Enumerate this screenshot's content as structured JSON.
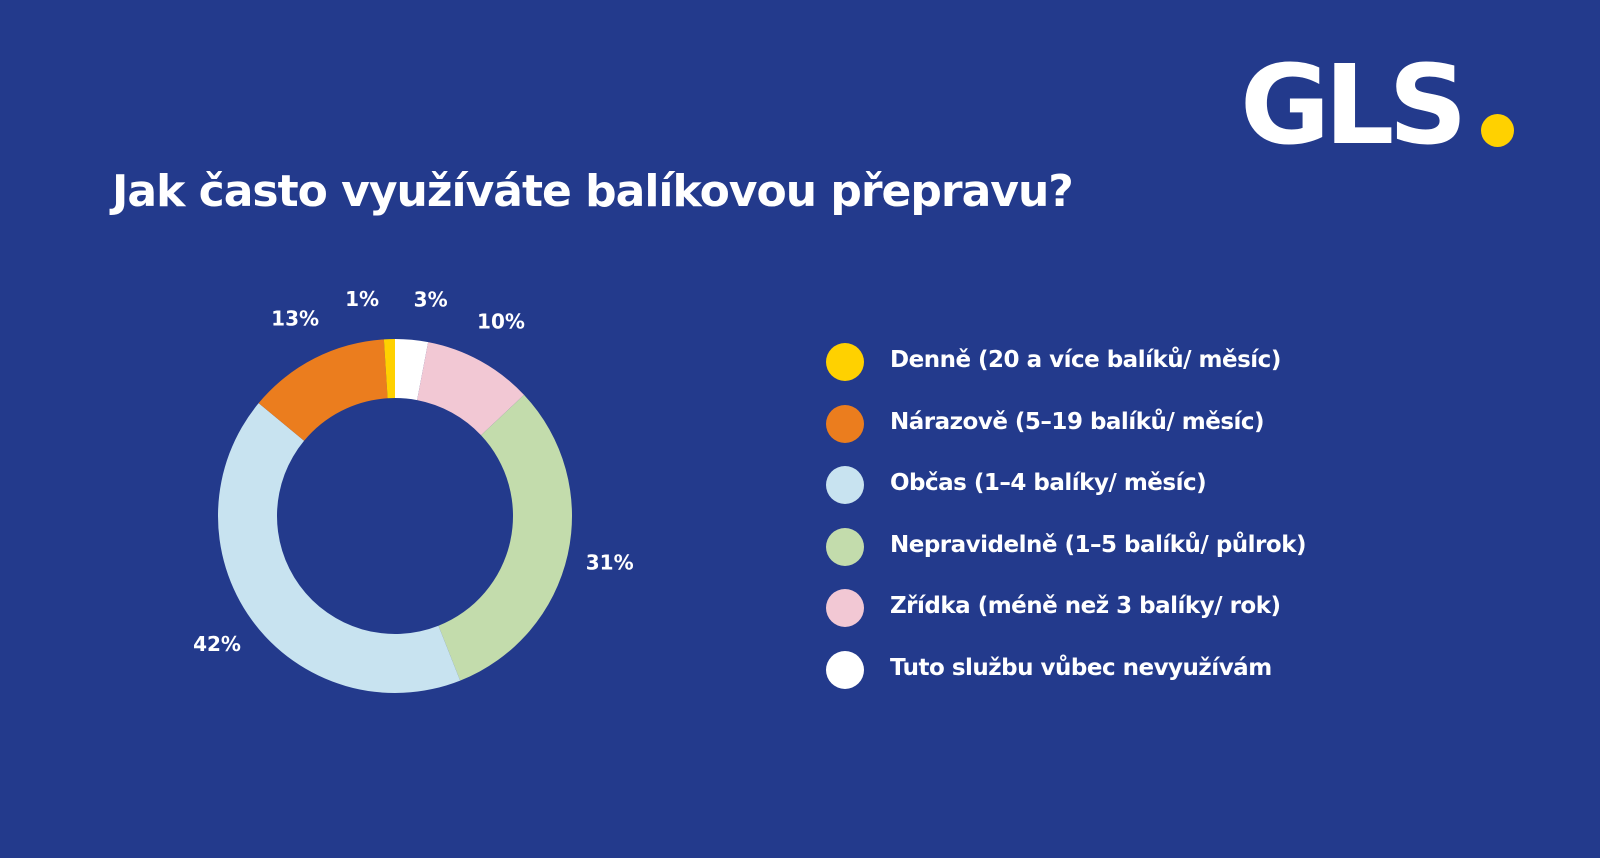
{
  "brand": {
    "logo_text": "GLS",
    "logo_dot_color": "#ffd100",
    "background_color": "#233a8c"
  },
  "title": "Jak často využíváte balíkovou přepravu?",
  "chart_data": {
    "type": "pie",
    "subtype": "donut",
    "title": "Jak často využíváte balíkovou přepravu?",
    "unit": "%",
    "legend_position": "right",
    "slices": [
      {
        "label": "Denně (20 a více balíků/ měsíc)",
        "value": 1,
        "value_label": "1%",
        "color": "#ffd100"
      },
      {
        "label": "Nárazově (5–19 balíků/ měsíc)",
        "value": 13,
        "value_label": "13%",
        "color": "#eb7d1e"
      },
      {
        "label": "Občas (1–4 balíky/ měsíc)",
        "value": 42,
        "value_label": "42%",
        "color": "#c8e3f0"
      },
      {
        "label": "Nepravidelně (1–5 balíků/ půlrok)",
        "value": 31,
        "value_label": "31%",
        "color": "#c3dcac"
      },
      {
        "label": "Zřídka (méně než 3 balíky/ rok)",
        "value": 10,
        "value_label": "10%",
        "color": "#f2c8d4"
      },
      {
        "label": "Tuto službu vůbec nevyužívám",
        "value": 3,
        "value_label": "3%",
        "color": "#ffffff"
      }
    ]
  }
}
